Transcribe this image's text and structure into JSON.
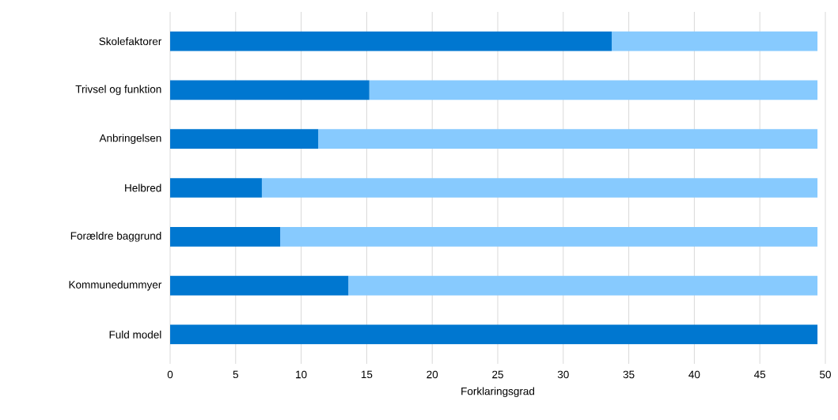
{
  "chart_data": {
    "type": "bar",
    "orientation": "horizontal",
    "stacked": true,
    "xlabel": "Forklaringsgrad",
    "categories": [
      "Skolefaktorer",
      "Trivsel og funktion",
      "Anbringelsen",
      "Helbred",
      "Forældre baggrund",
      "Kommunedummyer",
      "Fuld model"
    ],
    "series": [
      {
        "color": "#0077d0",
        "values": [
          33.7,
          15.2,
          11.3,
          7.0,
          8.4,
          13.6,
          49.4
        ]
      },
      {
        "color": "#87cafe",
        "values": [
          15.7,
          34.2,
          38.1,
          42.4,
          41.0,
          35.8,
          null
        ]
      }
    ],
    "xlim": [
      0,
      50
    ],
    "xticks": [
      0,
      5,
      10,
      15,
      20,
      25,
      30,
      35,
      40,
      45,
      50
    ],
    "grid": "x"
  }
}
